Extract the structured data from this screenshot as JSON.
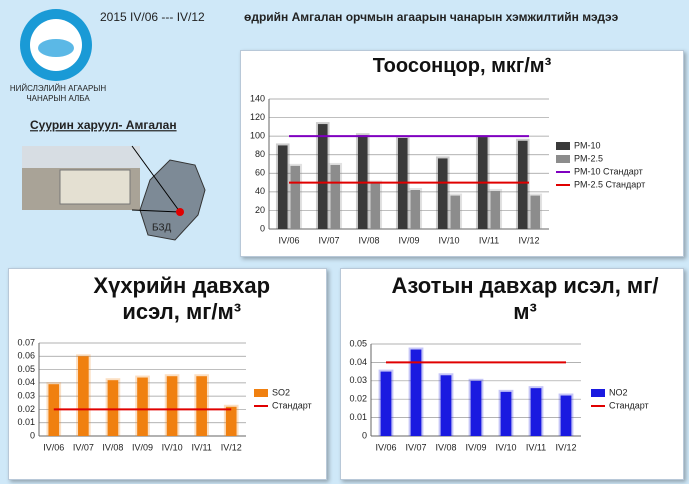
{
  "header": {
    "period": "2015  IV/06   ---  IV/12",
    "title": "өдрийн Амгалан орчмын агаарын чанарын хэмжилтийн мэдээ"
  },
  "logo": {
    "line1": "НИЙСЛЭЛИЙН АГААРЫН",
    "line2": "ЧАНАРЫН АЛБА"
  },
  "station": {
    "label": "Суурин харуул- Амгалан",
    "district": "БЗД"
  },
  "chart_data": [
    {
      "type": "bar",
      "title": "Тоосонцор, мкг/м³",
      "categories": [
        "IV/06",
        "IV/07",
        "IV/08",
        "IV/09",
        "IV/10",
        "IV/11",
        "IV/12"
      ],
      "ylim": [
        0,
        140
      ],
      "yticks": [
        0,
        20,
        40,
        60,
        80,
        100,
        120,
        140
      ],
      "grid": true,
      "series": [
        {
          "name": "PM-10",
          "type": "bar",
          "color": "#3a3a3a",
          "values": [
            90,
            113,
            101,
            98,
            76,
            99,
            95
          ]
        },
        {
          "name": "PM-2.5",
          "type": "bar",
          "color": "#8c8c8c",
          "values": [
            68,
            69,
            50,
            42,
            36,
            41,
            36
          ]
        },
        {
          "name": "PM-10 Стандарт",
          "type": "line",
          "color": "#7f00c0",
          "values": [
            100,
            100,
            100,
            100,
            100,
            100,
            100
          ]
        },
        {
          "name": "PM-2.5 Стандарт",
          "type": "line",
          "color": "#e00000",
          "values": [
            50,
            50,
            50,
            50,
            50,
            50,
            50
          ]
        }
      ]
    },
    {
      "type": "bar",
      "title": "Хүхрийн давхар исэл, мг/м³",
      "categories": [
        "IV/06",
        "IV/07",
        "IV/08",
        "IV/09",
        "IV/10",
        "IV/11",
        "IV/12"
      ],
      "ylim": [
        0,
        0.07
      ],
      "yticks": [
        0,
        0.01,
        0.02,
        0.03,
        0.04,
        0.05,
        0.06,
        0.07
      ],
      "grid": true,
      "series": [
        {
          "name": "SO2",
          "type": "bar",
          "color": "#f08010",
          "values": [
            0.039,
            0.06,
            0.042,
            0.044,
            0.045,
            0.045,
            0.022
          ]
        },
        {
          "name": "Стандарт",
          "type": "line",
          "color": "#e00000",
          "values": [
            0.02,
            0.02,
            0.02,
            0.02,
            0.02,
            0.02,
            0.02
          ]
        }
      ]
    },
    {
      "type": "bar",
      "title": "Азотын давхар исэл, мг/м³",
      "categories": [
        "IV/06",
        "IV/07",
        "IV/08",
        "IV/09",
        "IV/10",
        "IV/11",
        "IV/12"
      ],
      "ylim": [
        0,
        0.05
      ],
      "yticks": [
        0,
        0.01,
        0.02,
        0.03,
        0.04,
        0.05
      ],
      "grid": true,
      "series": [
        {
          "name": "NO2",
          "type": "bar",
          "color": "#1a1ae0",
          "values": [
            0.035,
            0.047,
            0.033,
            0.03,
            0.024,
            0.026,
            0.022
          ]
        },
        {
          "name": "Стандарт",
          "type": "line",
          "color": "#e00000",
          "values": [
            0.04,
            0.04,
            0.04,
            0.04,
            0.04,
            0.04,
            0.04
          ]
        }
      ]
    }
  ]
}
